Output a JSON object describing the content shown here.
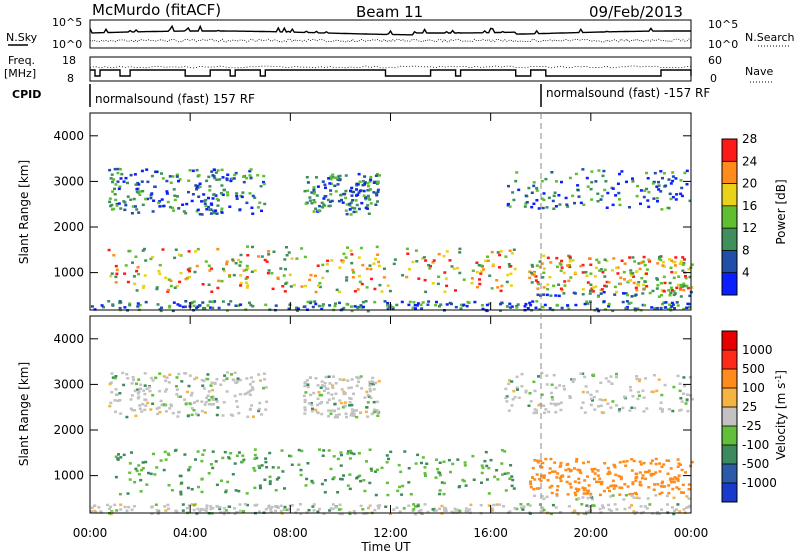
{
  "header": {
    "station": "McMurdo (fitACF)",
    "beam": "Beam 11",
    "date": "09/Feb/2013"
  },
  "panels": {
    "noise": {
      "left_label": "N.Sky",
      "right_label": "N.Search",
      "ticks_left": [
        "10^5",
        "10^0"
      ],
      "ticks_right": [
        "10^5",
        "10^0"
      ]
    },
    "freq": {
      "left_label_1": "Freq.",
      "left_label_2": "[MHz]",
      "right_label": "Nave",
      "ticks_left": [
        "18",
        "8"
      ],
      "ticks_right": [
        "60",
        "0"
      ]
    },
    "cpid": {
      "label": "CPID",
      "segments": [
        "normalsound (fast) 157 RF",
        "normalsound (fast) -157 RF"
      ]
    }
  },
  "chart_data": [
    {
      "type": "heatmap",
      "name": "power",
      "ylabel": "Slant Range [km]",
      "yticks": [
        "1000",
        "2000",
        "3000",
        "4000"
      ],
      "ylim": [
        180,
        4500
      ],
      "xlim": [
        0,
        24
      ],
      "colorbar": {
        "label": "Power [dB]",
        "ticks": [
          "4",
          "8",
          "12",
          "16",
          "20",
          "24",
          "28"
        ],
        "colors": [
          "#0a1eff",
          "#1f4fa8",
          "#3f8f5e",
          "#5fbf2e",
          "#e8d21a",
          "#ff8c1a",
          "#ff1a1a"
        ]
      }
    },
    {
      "type": "heatmap",
      "name": "velocity",
      "ylabel": "Slant Range [km]",
      "yticks": [
        "1000",
        "2000",
        "3000",
        "4000"
      ],
      "ylim": [
        180,
        4500
      ],
      "xlim": [
        0,
        24
      ],
      "colorbar": {
        "label": "Velocity [m s",
        "label_sup": "-1",
        "label_end": "]",
        "ticks": [
          "1000",
          "500",
          "100",
          "25",
          "-25",
          "-100",
          "-500",
          "-1000"
        ],
        "colors": [
          "#1a3acc",
          "#2a5aa8",
          "#3d8a5e",
          "#62bf3a",
          "#c2c2c2",
          "#f5b342",
          "#ff8c1a",
          "#ff2a1a",
          "#e80000"
        ]
      }
    }
  ],
  "xaxis": {
    "ticks": [
      "00:00",
      "04:00",
      "08:00",
      "12:00",
      "16:00",
      "20:00",
      "00:00"
    ],
    "label": "Time UT"
  }
}
